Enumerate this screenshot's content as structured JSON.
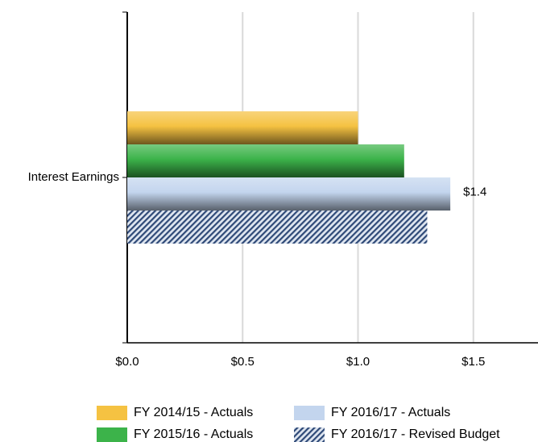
{
  "chart_data": {
    "type": "bar",
    "orientation": "horizontal",
    "categories": [
      "Interest Earnings"
    ],
    "series": [
      {
        "name": "FY 2014/15 - Actuals",
        "color": "#f5c242",
        "values": [
          1.0
        ]
      },
      {
        "name": "FY 2015/16 - Actuals",
        "color": "#3cb34a",
        "values": [
          1.2
        ]
      },
      {
        "name": "FY 2016/17 - Actuals",
        "color": "#c3d5ee",
        "values": [
          1.4
        ],
        "value_labels": [
          "$1.4"
        ]
      },
      {
        "name": "FY 2016/17 - Revised Budget",
        "color": "#2f4a78",
        "pattern": "hatch",
        "values": [
          1.3
        ]
      }
    ],
    "xlim": [
      0,
      1.78
    ],
    "xticks": [
      {
        "value": 0,
        "label": "$0.0"
      },
      {
        "value": 0.5,
        "label": "$0.5"
      },
      {
        "value": 1.0,
        "label": "$1.0"
      },
      {
        "value": 1.5,
        "label": "$1.5"
      }
    ],
    "grid": true
  }
}
